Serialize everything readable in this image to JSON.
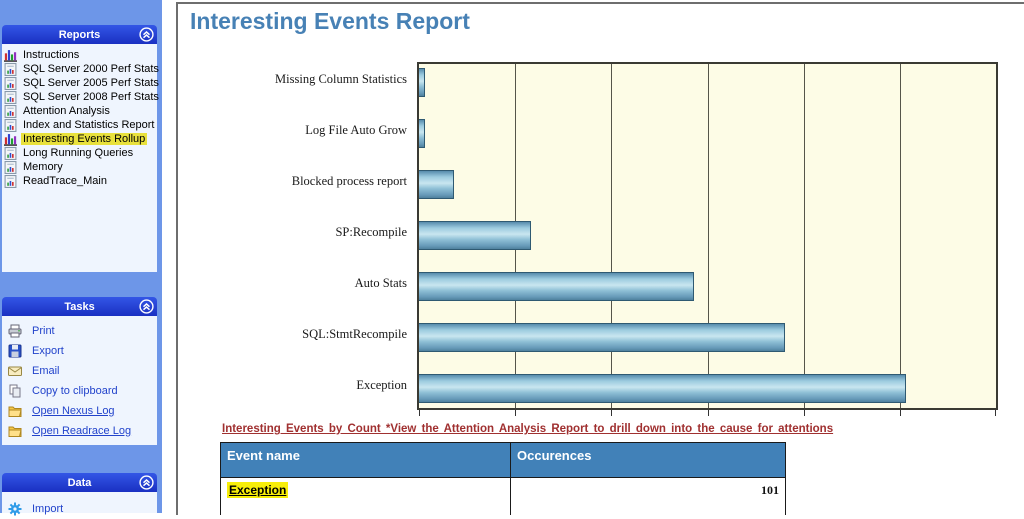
{
  "sidebar": {
    "panels": [
      {
        "title": "Reports",
        "items": [
          {
            "label": "Instructions",
            "icon": "chart-icon"
          },
          {
            "label": "SQL Server 2000 Perf Stats",
            "icon": "report-icon"
          },
          {
            "label": "SQL Server 2005 Perf Stats",
            "icon": "report-icon"
          },
          {
            "label": "SQL Server 2008 Perf Stats",
            "icon": "report-icon"
          },
          {
            "label": "Attention Analysis",
            "icon": "report-icon"
          },
          {
            "label": "Index and Statistics Report",
            "icon": "report-icon"
          },
          {
            "label": "Interesting Events Rollup",
            "icon": "chart-icon",
            "highlighted": true
          },
          {
            "label": "Long Running Queries",
            "icon": "report-icon"
          },
          {
            "label": "Memory",
            "icon": "report-icon"
          },
          {
            "label": "ReadTrace_Main",
            "icon": "report-icon"
          }
        ]
      },
      {
        "title": "Tasks",
        "items": [
          {
            "label": "Print",
            "icon": "printer-icon"
          },
          {
            "label": "Export",
            "icon": "save-icon"
          },
          {
            "label": "Email",
            "icon": "email-icon"
          },
          {
            "label": "Copy to clipboard",
            "icon": "copy-icon"
          },
          {
            "label": "Open Nexus Log",
            "icon": "folder-icon",
            "link": true
          },
          {
            "label": "Open Readrace Log",
            "icon": "folder-icon",
            "link": true
          }
        ]
      },
      {
        "title": "Data",
        "items": [
          {
            "label": "Import",
            "icon": "gear-icon"
          }
        ]
      }
    ]
  },
  "main": {
    "title": "Interesting Events Report",
    "caption": "Interesting Events by Count *View the Attention Analysis Report to drill down into the cause for attentions",
    "table": {
      "columns": [
        "Event name",
        "Occurences"
      ],
      "rows": [
        {
          "event": "Exception",
          "count": "101",
          "highlighted": true
        }
      ]
    }
  },
  "chart_data": {
    "type": "bar",
    "orientation": "horizontal",
    "categories": [
      "Missing Column Statistics",
      "Log File Auto Grow",
      "Blocked process report",
      "SP:Recompile",
      "Auto Stats",
      "SQL:StmtRecompile",
      "Exception"
    ],
    "values": [
      1,
      1,
      7,
      23,
      57,
      76,
      101
    ],
    "title": "",
    "xlabel": "",
    "ylabel": "",
    "xlim": [
      0,
      120
    ],
    "gridline_interval": 20,
    "grid": true,
    "x_tick_labels_visible": false,
    "legend": "none",
    "plot_bg": "#FDFCE6",
    "bar_color": "#7FB3CE"
  },
  "colors": {
    "sidebar_bg": "#6D96E8",
    "panel_header_blue": "#2038C8",
    "panel_body": "#EFF5FE",
    "sidebar_highlight": "#E8E13C",
    "task_link_blue": "#2243CB",
    "title_blue": "#4781B5",
    "caption_red": "#A03030",
    "table_header_blue": "#4181B8",
    "row_highlight_yellow": "#F7EE0A"
  }
}
